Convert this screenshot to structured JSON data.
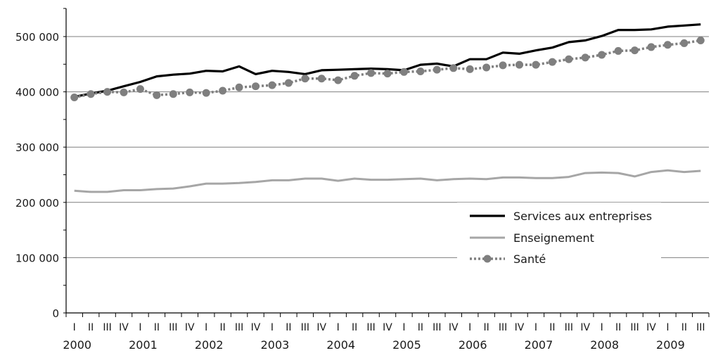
{
  "chart_data": {
    "type": "line",
    "title": "",
    "xlabel": "",
    "ylabel": "",
    "ylim": [
      0,
      500000
    ],
    "yticks": [
      "0",
      "100 000",
      "200 000",
      "300 000",
      "400 000",
      "500 000"
    ],
    "quarter_labels": [
      "I",
      "II",
      "III",
      "IV"
    ],
    "year_labels": [
      "2000",
      "2001",
      "2002",
      "2003",
      "2004",
      "2005",
      "2006",
      "2007",
      "2008",
      "2009"
    ],
    "x": [
      "2000-I",
      "2000-II",
      "2000-III",
      "2000-IV",
      "2001-I",
      "2001-II",
      "2001-III",
      "2001-IV",
      "2002-I",
      "2002-II",
      "2002-III",
      "2002-IV",
      "2003-I",
      "2003-II",
      "2003-III",
      "2003-IV",
      "2004-I",
      "2004-II",
      "2004-III",
      "2004-IV",
      "2005-I",
      "2005-II",
      "2005-III",
      "2005-IV",
      "2006-I",
      "2006-II",
      "2006-III",
      "2006-IV",
      "2007-I",
      "2007-II",
      "2007-III",
      "2007-IV",
      "2008-I",
      "2008-II",
      "2008-III",
      "2008-IV",
      "2009-I",
      "2009-II",
      "2009-III"
    ],
    "legend_position": "lower-right",
    "grid": true,
    "series": [
      {
        "name": "Services aux entreprises",
        "color": "#000000",
        "style": "solid-thick",
        "values": [
          391000,
          397000,
          402000,
          410000,
          418000,
          428000,
          431000,
          433000,
          438000,
          437000,
          446000,
          432000,
          438000,
          436000,
          432000,
          439000,
          440000,
          441000,
          442000,
          441000,
          439000,
          449000,
          451000,
          446000,
          459000,
          459000,
          471000,
          469000,
          475000,
          480000,
          490000,
          493000,
          501000,
          512000,
          512000,
          513000,
          518000,
          520000,
          522000
        ]
      },
      {
        "name": "Enseignement",
        "color": "#a6a6a6",
        "style": "solid",
        "values": [
          221000,
          219000,
          219000,
          222000,
          222000,
          224000,
          225000,
          229000,
          234000,
          234000,
          235000,
          237000,
          240000,
          240000,
          243000,
          243000,
          239000,
          243000,
          241000,
          241000,
          242000,
          243000,
          240000,
          242000,
          243000,
          242000,
          245000,
          245000,
          244000,
          244000,
          246000,
          253000,
          254000,
          253000,
          247000,
          255000,
          258000,
          255000,
          257000
        ]
      },
      {
        "name": "Santé",
        "color": "#7f7f7f",
        "style": "dotted-markers",
        "values": [
          390000,
          396000,
          400000,
          399000,
          405000,
          394000,
          396000,
          399000,
          398000,
          402000,
          408000,
          410000,
          412000,
          416000,
          424000,
          424000,
          421000,
          429000,
          434000,
          433000,
          436000,
          437000,
          440000,
          443000,
          441000,
          444000,
          448000,
          449000,
          449000,
          454000,
          459000,
          462000,
          467000,
          474000,
          475000,
          481000,
          485000,
          488000,
          493000
        ]
      }
    ]
  }
}
